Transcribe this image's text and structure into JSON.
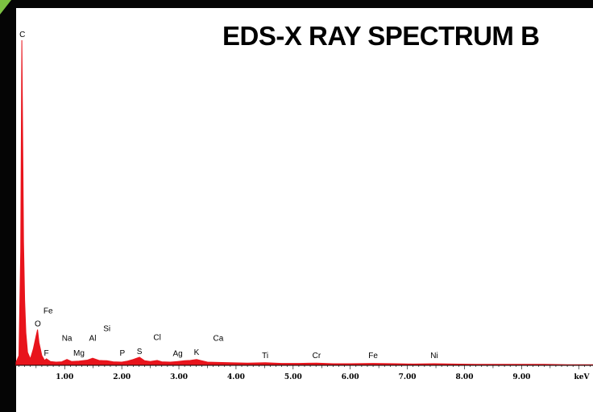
{
  "chart_data": {
    "type": "line",
    "title": "EDS-X RAY SPECTRUM B",
    "xlabel": "keV",
    "ylabel": "",
    "xlim": [
      0.15,
      10.25
    ],
    "ylim": [
      0,
      100
    ],
    "x_ticks": [
      {
        "value": 1.0,
        "label": "1.00"
      },
      {
        "value": 2.0,
        "label": "2.00"
      },
      {
        "value": 3.0,
        "label": "3.00"
      },
      {
        "value": 4.0,
        "label": "4.00"
      },
      {
        "value": 5.0,
        "label": "5.00"
      },
      {
        "value": 6.0,
        "label": "6.00"
      },
      {
        "value": 7.0,
        "label": "7.00"
      },
      {
        "value": 8.0,
        "label": "8.00"
      },
      {
        "value": 9.0,
        "label": "9.00"
      }
    ],
    "grid": false,
    "legend": "none",
    "series_color": "#e8141c",
    "spectrum": {
      "x": [
        0.15,
        0.2,
        0.23,
        0.25,
        0.27,
        0.28,
        0.3,
        0.32,
        0.35,
        0.4,
        0.45,
        0.5,
        0.525,
        0.55,
        0.6,
        0.65,
        0.68,
        0.75,
        0.85,
        0.95,
        1.04,
        1.12,
        1.25,
        1.4,
        1.49,
        1.6,
        1.74,
        1.85,
        2.0,
        2.1,
        2.2,
        2.31,
        2.4,
        2.5,
        2.62,
        2.7,
        2.85,
        2.98,
        3.1,
        3.2,
        3.31,
        3.5,
        3.69,
        3.9,
        4.2,
        4.51,
        4.8,
        5.1,
        5.41,
        5.7,
        6.0,
        6.4,
        6.8,
        7.1,
        7.47,
        7.8,
        8.2,
        8.6,
        9.0,
        9.4,
        9.8,
        10.25
      ],
      "y": [
        1,
        3,
        35,
        100,
        60,
        38,
        20,
        10,
        4,
        2,
        5,
        9,
        11,
        7,
        3,
        1.5,
        2,
        1.2,
        1,
        1.1,
        1.8,
        1.2,
        1.3,
        1.6,
        2.2,
        1.5,
        1.4,
        1.1,
        1,
        1.3,
        1.8,
        2.5,
        1.4,
        1.2,
        1.5,
        1.1,
        1,
        1.2,
        1.4,
        1.5,
        1.8,
        1,
        0.9,
        0.8,
        0.7,
        0.8,
        0.6,
        0.6,
        0.7,
        0.5,
        0.5,
        0.6,
        0.5,
        0.4,
        0.5,
        0.4,
        0.3,
        0.3,
        0.3,
        0.3,
        0.2,
        0.2
      ]
    },
    "annotations": [
      {
        "label": "C",
        "x": 0.26,
        "y": 101
      },
      {
        "label": "Fe",
        "x": 0.71,
        "y": 16
      },
      {
        "label": "O",
        "x": 0.53,
        "y": 12
      },
      {
        "label": "F",
        "x": 0.68,
        "y": 3
      },
      {
        "label": "Na",
        "x": 1.04,
        "y": 7.5
      },
      {
        "label": "Mg",
        "x": 1.25,
        "y": 3
      },
      {
        "label": "Al",
        "x": 1.49,
        "y": 7.5
      },
      {
        "label": "Si",
        "x": 1.74,
        "y": 10.5
      },
      {
        "label": "P",
        "x": 2.01,
        "y": 3
      },
      {
        "label": "S",
        "x": 2.31,
        "y": 3.5
      },
      {
        "label": "Cl",
        "x": 2.62,
        "y": 7.8
      },
      {
        "label": "Ag",
        "x": 2.98,
        "y": 2.8
      },
      {
        "label": "K",
        "x": 3.31,
        "y": 3.2
      },
      {
        "label": "Ca",
        "x": 3.69,
        "y": 7.5
      },
      {
        "label": "Ti",
        "x": 4.51,
        "y": 2.2
      },
      {
        "label": "Cr",
        "x": 5.41,
        "y": 2.2
      },
      {
        "label": "Fe",
        "x": 6.4,
        "y": 2.2
      },
      {
        "label": "Ni",
        "x": 7.47,
        "y": 2.2
      }
    ]
  }
}
